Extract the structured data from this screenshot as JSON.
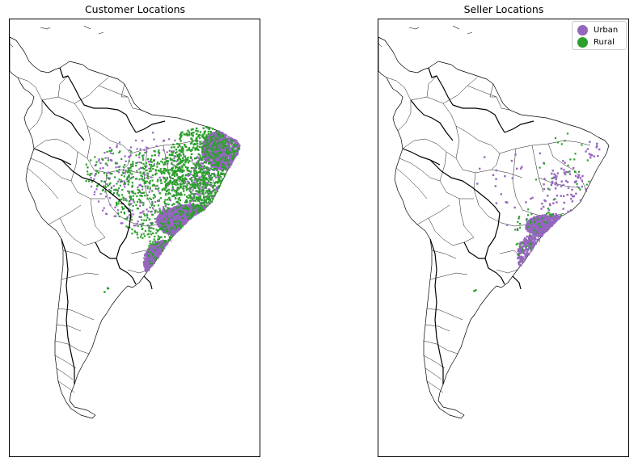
{
  "panels": [
    {
      "title": "Customer Locations"
    },
    {
      "title": "Seller Locations"
    }
  ],
  "legend": [
    {
      "label": "Urban",
      "color": "#9467bd"
    },
    {
      "label": "Rural",
      "color": "#2ca02c"
    }
  ],
  "colors": {
    "urban": "#9467bd",
    "rural": "#2ca02c",
    "border": "#000000"
  }
}
